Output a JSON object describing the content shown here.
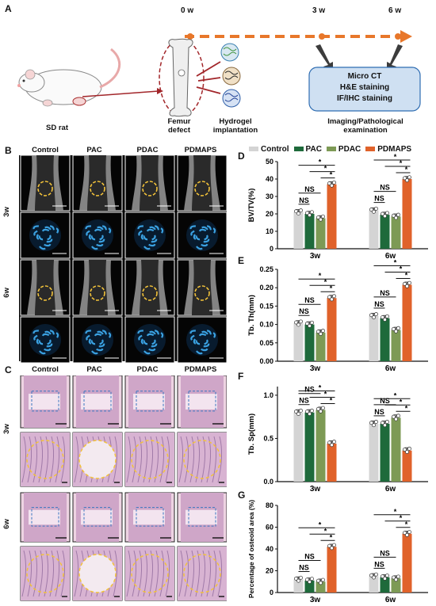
{
  "panel_labels": {
    "a": "A",
    "b": "B",
    "c": "C",
    "d": "D",
    "e": "E",
    "f": "F",
    "g": "G"
  },
  "schematic": {
    "timepoints": [
      "0 w",
      "3 w",
      "6 w"
    ],
    "rat_label": "SD rat",
    "defect_label": "Femur\ndefect",
    "implant_label": "Hydrogel\nimplantation",
    "analysis_box": [
      "Micro CT",
      "H&E staining",
      "IF/IHC staining"
    ],
    "analysis_caption": "Imaging/Pathological\nexamination",
    "colors": {
      "arrow": "#e8772a",
      "box_fill": "#cfe0f2",
      "box_border": "#2f6db2"
    }
  },
  "image_grid": {
    "columns": [
      "Control",
      "PAC",
      "PDAC",
      "PDMAPS"
    ],
    "rows": [
      "3w",
      "6w"
    ]
  },
  "legend": [
    {
      "name": "Control",
      "color": "#d4d4d4"
    },
    {
      "name": "PAC",
      "color": "#1e6a3b"
    },
    {
      "name": "PDAC",
      "color": "#7d9a55"
    },
    {
      "name": "PDMAPS",
      "color": "#e0622a"
    }
  ],
  "chart_data": [
    {
      "type": "bar",
      "panel": "D",
      "ylabel": "BV/TV(%)",
      "ylim": [
        0,
        50
      ],
      "yticks": [
        0,
        10,
        20,
        30,
        40,
        50
      ],
      "categories": [
        "3w",
        "6w"
      ],
      "series": [
        {
          "name": "Control",
          "values": [
            21,
            22
          ]
        },
        {
          "name": "PAC",
          "values": [
            20,
            19.5
          ]
        },
        {
          "name": "PDAC",
          "values": [
            17.5,
            18.5
          ]
        },
        {
          "name": "PDMAPS",
          "values": [
            37,
            40
          ]
        }
      ],
      "annotations": [
        "NS",
        "*"
      ]
    },
    {
      "type": "bar",
      "panel": "E",
      "ylabel": "Tb. Th(mm)",
      "ylim": [
        0,
        0.25
      ],
      "yticks": [
        "0.00",
        "0.05",
        "0.10",
        "0.15",
        "0.20",
        "0.25"
      ],
      "categories": [
        "3w",
        "6w"
      ],
      "series": [
        {
          "name": "Control",
          "values": [
            0.103,
            0.123
          ]
        },
        {
          "name": "PAC",
          "values": [
            0.1,
            0.117
          ]
        },
        {
          "name": "PDAC",
          "values": [
            0.078,
            0.085
          ]
        },
        {
          "name": "PDMAPS",
          "values": [
            0.172,
            0.208
          ]
        }
      ],
      "annotations": [
        "NS",
        "*"
      ]
    },
    {
      "type": "bar",
      "panel": "F",
      "ylabel": "Tb. Sp(mm)",
      "ylim": [
        0,
        1.1
      ],
      "yticks": [
        "0.0",
        "0.5",
        "1.0"
      ],
      "categories": [
        "3w",
        "6w"
      ],
      "series": [
        {
          "name": "Control",
          "values": [
            0.8,
            0.67
          ]
        },
        {
          "name": "PAC",
          "values": [
            0.8,
            0.67
          ]
        },
        {
          "name": "PDAC",
          "values": [
            0.83,
            0.74
          ]
        },
        {
          "name": "PDMAPS",
          "values": [
            0.44,
            0.36
          ]
        }
      ],
      "annotations": [
        "NS",
        "*"
      ]
    },
    {
      "type": "bar",
      "panel": "G",
      "ylabel": "Percentage of osteoid area (%)",
      "ylim": [
        0,
        80
      ],
      "yticks": [
        0,
        20,
        40,
        60,
        80
      ],
      "categories": [
        "3w",
        "6w"
      ],
      "series": [
        {
          "name": "Control",
          "values": [
            12,
            15
          ]
        },
        {
          "name": "PAC",
          "values": [
            11,
            14
          ]
        },
        {
          "name": "PDAC",
          "values": [
            10,
            13
          ]
        },
        {
          "name": "PDMAPS",
          "values": [
            42,
            54
          ]
        }
      ],
      "annotations": [
        "NS",
        "*"
      ]
    }
  ]
}
